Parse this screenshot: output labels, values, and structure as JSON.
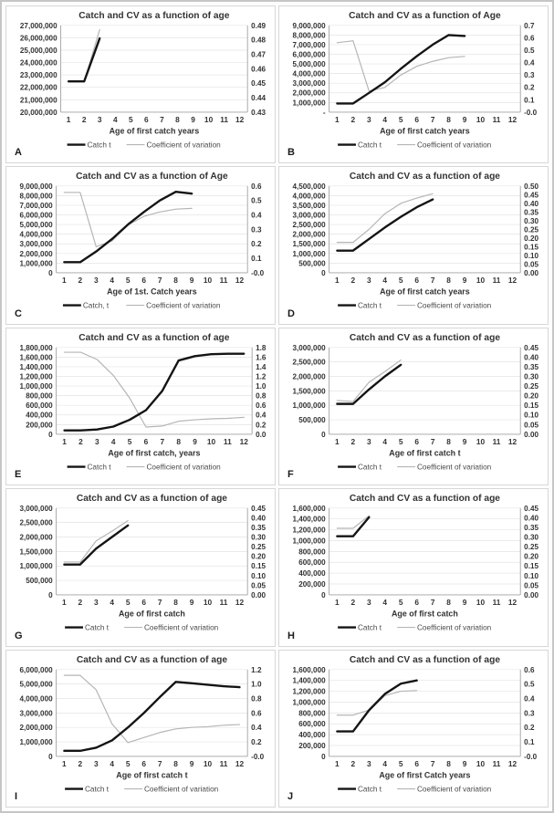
{
  "page": {
    "background": "#fdfdfd",
    "frame_color": "#c6c6c6",
    "panel_border_color": "#d7d7d7"
  },
  "colors": {
    "catch_line": "#141414",
    "cv_line": "#b5b5b5",
    "grid": "#e4e4e4",
    "axis": "#a0a0a0",
    "tick_text": "#333333",
    "title_text": "#333333",
    "legend_text": "#4a4a4a"
  },
  "chart_data": [
    {
      "type": "line",
      "panel_label": "A",
      "title": "Catch and CV as a function of age",
      "xlabel": "Age of first catch years",
      "x_ticks": [
        1,
        2,
        3,
        4,
        5,
        6,
        7,
        8,
        9,
        10,
        11,
        12
      ],
      "left_axis": {
        "min": 20000000,
        "max": 27000000,
        "step": 1000000
      },
      "right_axis": {
        "min": 0.43,
        "max": 0.49,
        "step": 0.01,
        "decimals": 2
      },
      "legend": [
        "Catch t",
        "Coefficient of variation"
      ],
      "series": [
        {
          "name": "Catch t",
          "axis": "left",
          "x": [
            1,
            2,
            3
          ],
          "values": [
            22480000,
            22480000,
            25950000
          ]
        },
        {
          "name": "Coefficient of variation",
          "axis": "right",
          "x": [
            1,
            2,
            3
          ],
          "values": [
            0.451,
            0.451,
            0.487
          ]
        }
      ]
    },
    {
      "type": "line",
      "panel_label": "B",
      "title": "Catch and CV as a function of Age",
      "xlabel": "Age of first catch years",
      "x_ticks": [
        1,
        2,
        3,
        4,
        5,
        6,
        7,
        8,
        9,
        10,
        11,
        12
      ],
      "left_axis": {
        "min": 0,
        "max": 9000000,
        "step": 1000000,
        "min_label": "-"
      },
      "right_axis": {
        "min": 0.0,
        "max": 0.7,
        "step": 0.1,
        "decimals": 1
      },
      "legend": [
        "Catch t",
        "Coefficient of variation"
      ],
      "series": [
        {
          "name": "Catch t",
          "axis": "left",
          "x": [
            1,
            2,
            3,
            4,
            5,
            6,
            7,
            8,
            9
          ],
          "values": [
            900000,
            900000,
            2000000,
            3100000,
            4500000,
            5800000,
            7000000,
            8000000,
            7900000
          ]
        },
        {
          "name": "Coefficient of variation",
          "axis": "right",
          "x": [
            1,
            2,
            3,
            4,
            5,
            6,
            7,
            8,
            9
          ],
          "values": [
            0.56,
            0.575,
            0.17,
            0.2,
            0.3,
            0.37,
            0.41,
            0.44,
            0.45
          ]
        }
      ]
    },
    {
      "type": "line",
      "panel_label": "C",
      "title": "Catch and CV as a function of Age",
      "xlabel": "Age of 1st. Catch years",
      "x_ticks": [
        1,
        2,
        3,
        4,
        5,
        6,
        7,
        8,
        9,
        10,
        11,
        12
      ],
      "left_axis": {
        "min": 0,
        "max": 9000000,
        "step": 1000000
      },
      "right_axis": {
        "min": 0.0,
        "max": 0.6,
        "step": 0.1,
        "decimals": 1
      },
      "legend": [
        "Catch, t",
        "Coefficient of variation"
      ],
      "series": [
        {
          "name": "Catch, t",
          "axis": "left",
          "x": [
            1,
            2,
            3,
            4,
            5,
            6,
            7,
            8,
            9
          ],
          "values": [
            1100000,
            1100000,
            2200000,
            3500000,
            5000000,
            6300000,
            7500000,
            8400000,
            8200000
          ]
        },
        {
          "name": "Coefficient of variation",
          "axis": "right",
          "x": [
            1,
            2,
            3,
            4,
            5,
            6,
            7,
            8,
            9
          ],
          "values": [
            0.555,
            0.555,
            0.18,
            0.22,
            0.33,
            0.39,
            0.42,
            0.44,
            0.445
          ]
        }
      ]
    },
    {
      "type": "line",
      "panel_label": "D",
      "title": "Catch and CV as a function of age",
      "xlabel": "Age of first catch years",
      "x_ticks": [
        1,
        2,
        3,
        4,
        5,
        6,
        7,
        8,
        9,
        10,
        11,
        12
      ],
      "left_axis": {
        "min": 0,
        "max": 4500000,
        "step": 500000
      },
      "right_axis": {
        "min": 0.0,
        "max": 0.5,
        "step": 0.05,
        "decimals": 2
      },
      "legend": [
        "Catch t",
        "Coefficient of variation"
      ],
      "series": [
        {
          "name": "Catch t",
          "axis": "left",
          "x": [
            1,
            2,
            3,
            4,
            5,
            6,
            7
          ],
          "values": [
            1150000,
            1150000,
            1750000,
            2350000,
            2900000,
            3400000,
            3800000
          ]
        },
        {
          "name": "Coefficient of variation",
          "axis": "right",
          "x": [
            1,
            2,
            3,
            4,
            5,
            6,
            7
          ],
          "values": [
            0.175,
            0.175,
            0.25,
            0.34,
            0.4,
            0.43,
            0.455
          ]
        }
      ]
    },
    {
      "type": "line",
      "panel_label": "E",
      "title": "Catch and CV as a function of age",
      "xlabel": "Age of first catch, years",
      "x_ticks": [
        1,
        2,
        3,
        4,
        5,
        6,
        7,
        8,
        9,
        10,
        11,
        12
      ],
      "left_axis": {
        "min": 0,
        "max": 1800000,
        "step": 200000
      },
      "right_axis": {
        "min": 0.0,
        "max": 1.8,
        "step": 0.2,
        "decimals": 1
      },
      "legend": [
        "Catch t",
        "Coefficient of variation"
      ],
      "series": [
        {
          "name": "Catch t",
          "axis": "left",
          "x": [
            1,
            2,
            3,
            4,
            5,
            6,
            7,
            8,
            9,
            10,
            11,
            12
          ],
          "values": [
            80000,
            80000,
            100000,
            160000,
            300000,
            500000,
            900000,
            1530000,
            1620000,
            1660000,
            1670000,
            1670000
          ]
        },
        {
          "name": "Coefficient of variation",
          "axis": "right",
          "x": [
            1,
            2,
            3,
            4,
            5,
            6,
            7,
            8,
            9,
            10,
            11,
            12
          ],
          "values": [
            1.7,
            1.7,
            1.55,
            1.22,
            0.75,
            0.15,
            0.17,
            0.27,
            0.3,
            0.32,
            0.33,
            0.35
          ]
        }
      ]
    },
    {
      "type": "line",
      "panel_label": "F",
      "title": "Catch and CV as a function of age",
      "xlabel": "Age of first catch t",
      "x_ticks": [
        1,
        2,
        3,
        4,
        5,
        6,
        7,
        8,
        9,
        10,
        11,
        12
      ],
      "left_axis": {
        "min": 0,
        "max": 3000000,
        "step": 500000
      },
      "right_axis": {
        "min": 0.0,
        "max": 0.45,
        "step": 0.05,
        "decimals": 2
      },
      "legend": [
        "Catch t",
        "Coefficient of variation"
      ],
      "series": [
        {
          "name": "Catch t",
          "axis": "left",
          "x": [
            1,
            2,
            3,
            4,
            5
          ],
          "values": [
            1050000,
            1050000,
            1550000,
            2000000,
            2400000
          ]
        },
        {
          "name": "Coefficient of variation",
          "axis": "right",
          "x": [
            1,
            2,
            3,
            4,
            5
          ],
          "values": [
            0.175,
            0.17,
            0.27,
            0.325,
            0.385
          ]
        }
      ]
    },
    {
      "type": "line",
      "panel_label": "G",
      "title": "Catch and CV as a function of age",
      "xlabel": "Age of first catch",
      "x_ticks": [
        1,
        2,
        3,
        4,
        5,
        6,
        7,
        8,
        9,
        10,
        11,
        12
      ],
      "left_axis": {
        "min": 0,
        "max": 3000000,
        "step": 500000
      },
      "right_axis": {
        "min": 0.0,
        "max": 0.45,
        "step": 0.05,
        "decimals": 2
      },
      "legend": [
        "Catch t",
        "Coefficient of variation"
      ],
      "series": [
        {
          "name": "Catch t",
          "axis": "left",
          "x": [
            1,
            2,
            3,
            4,
            5
          ],
          "values": [
            1050000,
            1050000,
            1600000,
            2000000,
            2400000
          ]
        },
        {
          "name": "Coefficient of variation",
          "axis": "right",
          "x": [
            1,
            2,
            3,
            4,
            5
          ],
          "values": [
            0.17,
            0.17,
            0.28,
            0.33,
            0.385
          ]
        }
      ]
    },
    {
      "type": "line",
      "panel_label": "H",
      "title": "Catch and CV as a function of age",
      "xlabel": "Age of first catch",
      "x_ticks": [
        1,
        2,
        3,
        4,
        5,
        6,
        7,
        8,
        9,
        10,
        11,
        12
      ],
      "left_axis": {
        "min": 0,
        "max": 1600000,
        "step": 200000
      },
      "right_axis": {
        "min": 0.0,
        "max": 0.45,
        "step": 0.05,
        "decimals": 2
      },
      "legend": [
        "Catch t",
        "Coefficient of variation"
      ],
      "series": [
        {
          "name": "Catch t",
          "axis": "left",
          "x": [
            1,
            2,
            3
          ],
          "values": [
            1080000,
            1080000,
            1430000
          ]
        },
        {
          "name": "Coefficient of variation",
          "axis": "right",
          "x": [
            1,
            2,
            3
          ],
          "values": [
            0.345,
            0.345,
            0.41
          ]
        }
      ]
    },
    {
      "type": "line",
      "panel_label": "I",
      "title": "Catch and CV as a function of age",
      "xlabel": "Age of first catch t",
      "x_ticks": [
        1,
        2,
        3,
        4,
        5,
        6,
        7,
        8,
        9,
        10,
        11,
        12
      ],
      "left_axis": {
        "min": 0,
        "max": 6000000,
        "step": 1000000
      },
      "right_axis": {
        "min": 0.0,
        "max": 1.2,
        "step": 0.2,
        "decimals": 1
      },
      "legend": [
        "Catch t",
        "Coefficient of variation"
      ],
      "series": [
        {
          "name": "Catch t",
          "axis": "left",
          "x": [
            1,
            2,
            3,
            4,
            5,
            6,
            7,
            8,
            9,
            10,
            11,
            12
          ],
          "values": [
            380000,
            380000,
            600000,
            1100000,
            2000000,
            3000000,
            4100000,
            5150000,
            5050000,
            4950000,
            4850000,
            4780000
          ]
        },
        {
          "name": "Coefficient of variation",
          "axis": "right",
          "x": [
            1,
            2,
            3,
            4,
            5,
            6,
            7,
            8,
            9,
            10,
            11,
            12
          ],
          "values": [
            1.12,
            1.12,
            0.92,
            0.45,
            0.19,
            0.26,
            0.33,
            0.38,
            0.4,
            0.41,
            0.43,
            0.44
          ]
        }
      ]
    },
    {
      "type": "line",
      "panel_label": "J",
      "title": "Catch and CV as a function of age",
      "xlabel": "Age of first Catch years",
      "x_ticks": [
        1,
        2,
        3,
        4,
        5,
        6,
        7,
        8,
        9,
        10,
        11,
        12
      ],
      "left_axis": {
        "min": 0,
        "max": 1600000,
        "step": 200000
      },
      "right_axis": {
        "min": 0.0,
        "max": 0.6,
        "step": 0.1,
        "decimals": 1
      },
      "legend": [
        "Catch t",
        "Coefficient of variation"
      ],
      "series": [
        {
          "name": "Catch t",
          "axis": "left",
          "x": [
            1,
            2,
            3,
            4,
            5,
            6
          ],
          "values": [
            460000,
            460000,
            850000,
            1150000,
            1340000,
            1400000
          ]
        },
        {
          "name": "Coefficient of variation",
          "axis": "right",
          "x": [
            1,
            2,
            3,
            4,
            5,
            6
          ],
          "values": [
            0.285,
            0.285,
            0.32,
            0.42,
            0.45,
            0.455
          ]
        }
      ]
    }
  ]
}
